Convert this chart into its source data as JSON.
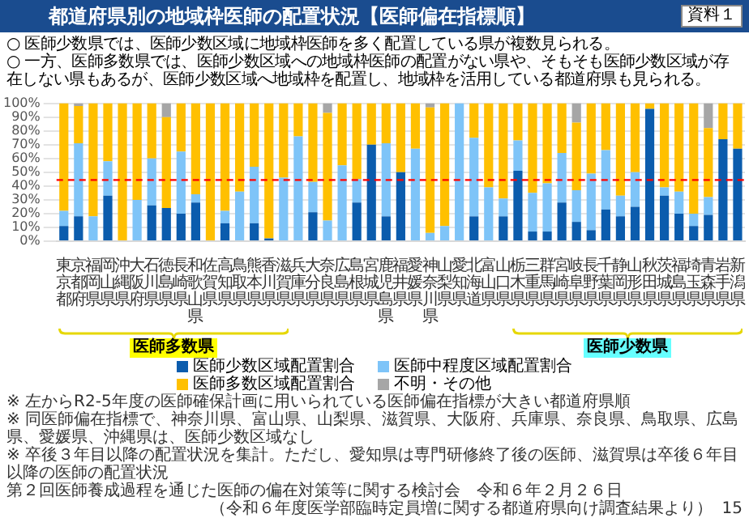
{
  "chart_data": {
    "type": "bar",
    "stacked": true,
    "title": "都道府県別の地域枠医師の配置状況【医師偏在指標順】",
    "categories": [
      "東京都",
      "京都府",
      "福岡県",
      "岡山県",
      "沖縄県",
      "大阪府",
      "石川県",
      "徳島県",
      "長崎県",
      "和歌山県",
      "佐賀県",
      "高知県",
      "鳥取県",
      "熊本県",
      "香川県",
      "滋賀県",
      "兵庫県",
      "大分県",
      "奈良県",
      "広島県",
      "島根県",
      "宮城県",
      "鹿児島県",
      "福井県",
      "愛媛県",
      "神奈川県",
      "山梨県",
      "愛知県",
      "北海道",
      "富山県",
      "山口県",
      "栃木県",
      "三重県",
      "群馬県",
      "宮崎県",
      "岐阜県",
      "長野県",
      "千葉県",
      "静岡県",
      "山形県",
      "秋田県",
      "茨城県",
      "福島県",
      "埼玉県",
      "青森県",
      "岩手県",
      "新潟県"
    ],
    "series": [
      {
        "name": "医師少数区域配置割合",
        "color": "#0b5cad",
        "values": [
          11,
          18,
          0,
          33,
          0,
          0,
          26,
          24,
          20,
          28,
          0,
          13,
          0,
          13,
          2,
          0,
          0,
          21,
          0,
          0,
          28,
          70,
          18,
          50,
          0,
          0,
          0,
          0,
          18,
          0,
          18,
          51,
          7,
          7,
          28,
          14,
          8,
          23,
          18,
          25,
          96,
          33,
          20,
          11,
          19,
          74,
          67
        ]
      },
      {
        "name": "医師中程度区域配置割合",
        "color": "#7ec4f8",
        "values": [
          11,
          53,
          18,
          25,
          0,
          30,
          34,
          0,
          45,
          6,
          0,
          9,
          36,
          41,
          0,
          46,
          76,
          22,
          15,
          55,
          17,
          0,
          53,
          0,
          67,
          6,
          11,
          100,
          57,
          39,
          13,
          22,
          28,
          35,
          36,
          23,
          41,
          43,
          15,
          25,
          0,
          6,
          16,
          9,
          13,
          0,
          0
        ]
      },
      {
        "name": "医師多数区域配置割合",
        "color": "#ffc000",
        "values": [
          78,
          27,
          82,
          42,
          100,
          70,
          40,
          66,
          35,
          66,
          100,
          78,
          64,
          46,
          98,
          54,
          24,
          57,
          78,
          45,
          55,
          30,
          29,
          50,
          33,
          91,
          89,
          0,
          25,
          61,
          69,
          27,
          65,
          58,
          36,
          49,
          51,
          34,
          67,
          50,
          4,
          61,
          64,
          80,
          50,
          26,
          33
        ]
      },
      {
        "name": "不明・その他",
        "color": "#a6a6a6",
        "values": [
          0,
          2,
          0,
          0,
          0,
          0,
          0,
          10,
          0,
          0,
          0,
          0,
          0,
          0,
          0,
          0,
          0,
          0,
          7,
          0,
          0,
          0,
          0,
          0,
          0,
          3,
          0,
          0,
          0,
          0,
          0,
          0,
          0,
          0,
          0,
          14,
          0,
          0,
          0,
          0,
          0,
          0,
          0,
          0,
          18,
          0,
          0
        ]
      }
    ],
    "ylim": [
      0,
      100
    ],
    "yticks": [
      {
        "value": 0,
        "label": "0%"
      },
      {
        "value": 10,
        "label": "10%"
      },
      {
        "value": 20,
        "label": "20%"
      },
      {
        "value": 30,
        "label": "30%"
      },
      {
        "value": 40,
        "label": "40%"
      },
      {
        "value": 50,
        "label": "50%"
      },
      {
        "value": 60,
        "label": "60%"
      },
      {
        "value": 70,
        "label": "70%"
      },
      {
        "value": 80,
        "label": "80%"
      },
      {
        "value": 90,
        "label": "90%"
      },
      {
        "value": 100,
        "label": "100%"
      }
    ],
    "grid": "y",
    "legend": "bottom",
    "ref_lines": [
      {
        "axis": "y",
        "value": 44.4,
        "color": "#ff0000",
        "line_style": "dashed"
      }
    ],
    "annotations": [
      "○ 医師少数県では、医師少数区域に地域枠医師を多く配置している県が複数見られる。",
      "○ 一方、医師多数県では、医師少数区域への地域枠医師の配置がない県や、そもそも医師少数区域が存在しない県もあるが、医師少数区域へ地域枠を配置し、地域枠を活用している都道府県も見られる。",
      "※ 左からR2-5年度の医師確保計画に用いられている医師偏在指標が大きい都道府県順",
      "※ 同医師偏在指標で、神奈川県、富山県、山梨県、滋賀県、大阪府、兵庫県、奈良県、鳥取県、広島県、愛媛県、沖縄県は、医師少数区域なし",
      "※ 卒後３年目以降の配置状況を集計。ただし、愛知県は専門研修終了後の医師、滋賀県は卒後６年目以降の医師の配置状況",
      "（令和６年度医学部臨時定員増に関する都道府県向け調査結果より）",
      "15",
      "第２回医師養成過程を通じた医師の偏在対策等に関する検討会",
      "令和６年２月２６日",
      "資料１",
      "医師多数県",
      "医師少数県"
    ]
  }
}
